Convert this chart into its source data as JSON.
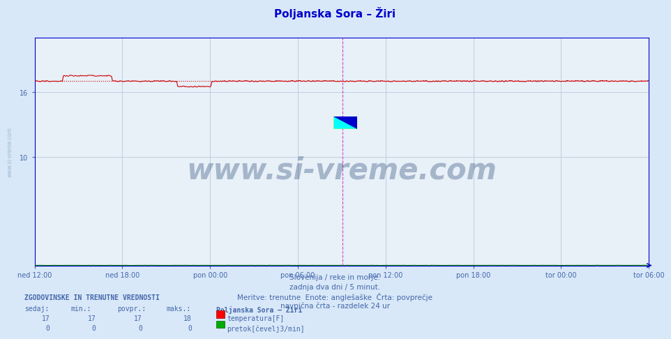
{
  "title": "Poljanska Sora – Žiri",
  "bg_color": "#d8e8f8",
  "plot_bg_color": "#e8f0f8",
  "grid_color": "#c0cce0",
  "temp_color": "#cc0000",
  "flow_color": "#007700",
  "avg_line_color": "#cc0000",
  "vline_color": "#cc44cc",
  "vline2_color": "#8888cc",
  "axis_color": "#0000cc",
  "text_color": "#4466aa",
  "title_color": "#0000cc",
  "n_points": 576,
  "temp_avg": 17.0,
  "temp_min": 17.0,
  "temp_max": 18.0,
  "temp_current": 17.0,
  "flow_avg": 0.0,
  "flow_min": 0.0,
  "flow_max": 0.0,
  "flow_current": 0.0,
  "ylim_min": 0,
  "ylim_max": 21,
  "yticks_show": [
    10,
    16
  ],
  "x_labels": [
    "ned 12:00",
    "ned 18:00",
    "pon 00:00",
    "pon 06:00",
    "pon 12:00",
    "pon 18:00",
    "tor 00:00",
    "tor 06:00"
  ],
  "footer_line1": "Slovenija / reke in morje.",
  "footer_line2": "zadnja dva dni / 5 minut.",
  "footer_line3": "Meritve: trenutne  Enote: anglešaške  Črta: povprečje",
  "footer_line4": "navpična črta - razdelek 24 ur",
  "table_header": "ZGODOVINSKE IN TRENUTNE VREDNOSTI",
  "col_sedaj": "sedaj:",
  "col_min": "min.:",
  "col_povpr": "povpr.:",
  "col_maks": "maks.:",
  "station_name": "Poljanska Sora – Žiri",
  "legend_temp": "temperatura[F]",
  "legend_flow": "pretok[čevelj3/min]",
  "watermark": "www.si-vreme.com",
  "left_watermark": "www.si-vreme.com"
}
